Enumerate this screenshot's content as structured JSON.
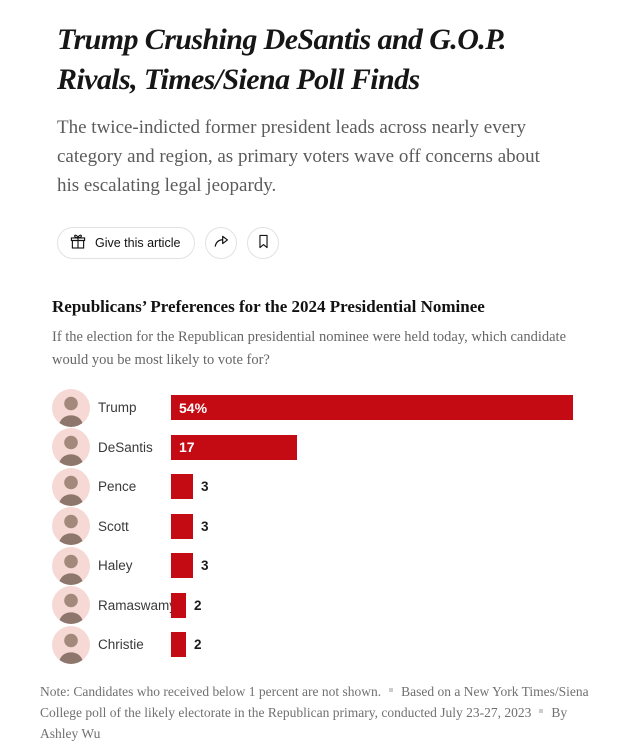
{
  "article": {
    "headline": "Trump Crushing DeSantis and G.O.P. Rivals, Times/Siena Poll Finds",
    "headline_lines": [
      "Trump Crushing DeSantis and G.O.P.",
      "Rivals, Times/Siena Poll Finds"
    ],
    "dek": "The twice-indicted former president leads across nearly every category and region, as primary voters wave off concerns about his escalating legal jeopardy.",
    "dek_lines": [
      "The twice-indicted former president leads across nearly every",
      "category and region, as primary voters wave off concerns about",
      "his escalating legal jeopardy."
    ],
    "actions": {
      "give_label": "Give this article",
      "give_icon": "gift-icon",
      "share_icon": "share-arrow-icon",
      "save_icon": "bookmark-icon"
    }
  },
  "chart_data": {
    "type": "bar",
    "orientation": "horizontal",
    "title": "Republicans’ Preferences for the 2024 Presidential Nominee",
    "subtitle": "If the election for the Republican presidential nominee were held today, which candidate would you be most likely to vote for?",
    "subtitle_lines": [
      "If the election for the Republican presidential nominee were held today, which candidate",
      "would you be most likely to vote for?"
    ],
    "categories": [
      "Trump",
      "DeSantis",
      "Pence",
      "Scott",
      "Haley",
      "Ramaswamy",
      "Christie"
    ],
    "values": [
      54,
      17,
      3,
      3,
      3,
      2,
      2
    ],
    "value_labels": [
      "54%",
      "17",
      "3",
      "3",
      "3",
      "2",
      "2"
    ],
    "xlim": [
      0,
      58
    ],
    "grid": false,
    "legend": false,
    "bar_color": "#c40a12",
    "avatar_bg_color": "#f6d9d4",
    "footnote_parts": [
      "Note: Candidates who received below 1 percent are not shown.",
      "Based on a New York Times/Siena College poll of the likely electorate in the Republican primary, conducted July 23-27, 2023",
      "By Ashley Wu"
    ]
  }
}
